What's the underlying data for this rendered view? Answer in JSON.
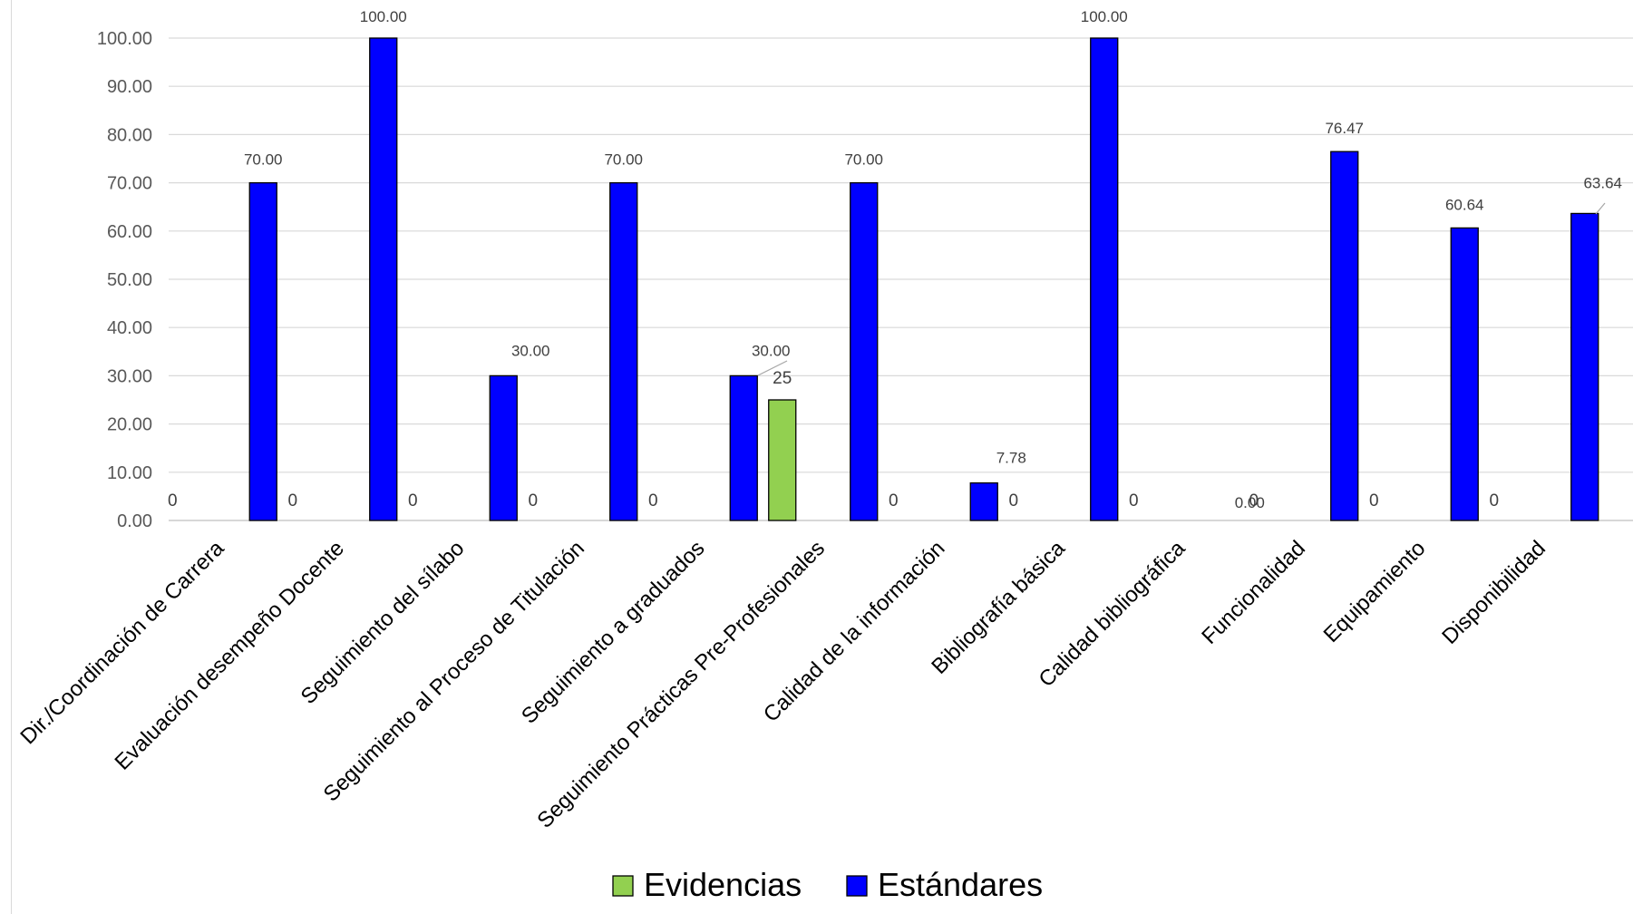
{
  "chart_data": {
    "type": "bar",
    "title": "",
    "xlabel": "",
    "ylabel": "",
    "ylim": [
      0,
      100
    ],
    "y_ticks": [
      "0.00",
      "10.00",
      "20.00",
      "30.00",
      "40.00",
      "50.00",
      "60.00",
      "70.00",
      "80.00",
      "90.00",
      "100.00"
    ],
    "grid": true,
    "legend_position": "bottom",
    "categories": [
      "Dir./Coordinación de Carrera",
      "Evaluación desempeño Docente",
      "Seguimiento del sílabo",
      "Seguimiento al Proceso de Titulación",
      "Seguimiento a graduados",
      "Seguimiento Prácticas Pre-Profesionales",
      "Calidad de la información",
      "Bibliografía básica",
      "Calidad bibliográfica",
      "Funcionalidad",
      "Equipamiento",
      "Disponibilidad"
    ],
    "series": [
      {
        "name": "Evidencias",
        "color": "#92d050",
        "values": [
          0,
          0,
          0,
          0,
          0,
          25,
          0,
          0,
          0,
          0,
          0,
          0
        ],
        "labels": [
          "0",
          "0",
          "0",
          "0",
          "0",
          "25",
          "0",
          "0",
          "0",
          "0",
          "0",
          "0"
        ]
      },
      {
        "name": "Estándares",
        "color": "#0000ff",
        "values": [
          70,
          100,
          30,
          70,
          30,
          70,
          7.78,
          100,
          0,
          76.47,
          60.64,
          63.64
        ],
        "labels": [
          "70.00",
          "100.00",
          "30.00",
          "70.00",
          "30.00",
          "70.00",
          "7.78",
          "100.00",
          "0.00",
          "76.47",
          "60.64",
          "63.64"
        ]
      }
    ]
  }
}
